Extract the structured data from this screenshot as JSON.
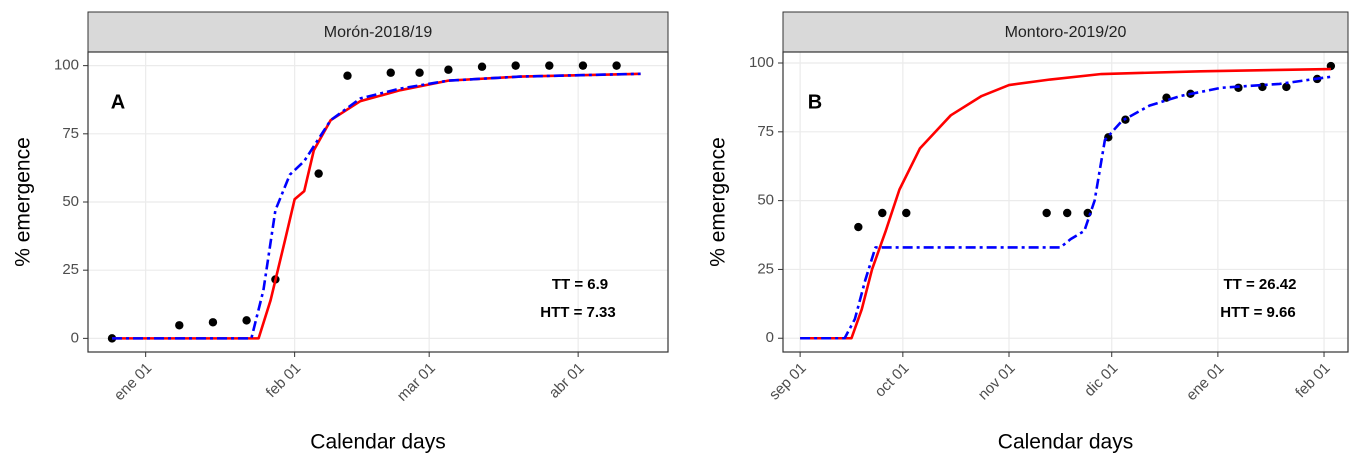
{
  "chart_data": [
    {
      "type": "line",
      "title": "Morón-2018/19",
      "xlabel": "Calendar days",
      "ylabel": "% emergence",
      "annotations": [
        "A",
        "TT = 6.9",
        "HTT = 7.33"
      ],
      "xlim": [
        -12,
        108.7
      ],
      "ylim": [
        -5,
        105
      ],
      "xticks": [
        {
          "value": 0,
          "label": "ene 01"
        },
        {
          "value": 31,
          "label": "feb 01"
        },
        {
          "value": 59,
          "label": "mar 01"
        },
        {
          "value": 90,
          "label": "abr 01"
        }
      ],
      "yticks": [
        0,
        25,
        50,
        75,
        100
      ],
      "grid": true,
      "series": [
        {
          "color": "#000000",
          "mark": "point",
          "x": [
            -7,
            7,
            14,
            21,
            27,
            36,
            42,
            51,
            57,
            63,
            70,
            77,
            84,
            91,
            98
          ],
          "values": [
            0,
            4.8,
            5.9,
            6.6,
            21.6,
            60.4,
            96.3,
            97.4,
            97.4,
            98.5,
            99.6,
            100,
            100,
            100,
            100
          ]
        },
        {
          "color": "#ff0000",
          "mark": "line",
          "dash": false,
          "x": [
            -7,
            23.5,
            26,
            29,
            31,
            33,
            35,
            38.5,
            44.7,
            53,
            63,
            78,
            103
          ],
          "values": [
            0,
            0,
            14,
            36,
            51,
            54,
            69,
            80,
            87,
            91,
            94.5,
            96,
            97
          ]
        },
        {
          "color": "#0000ff",
          "mark": "line",
          "dash": true,
          "x": [
            -7,
            22,
            24.5,
            27,
            30,
            33,
            38.5,
            44.7,
            53,
            63,
            78,
            103
          ],
          "values": [
            0,
            0,
            17.6,
            47,
            60,
            65,
            80,
            88,
            91.6,
            94.5,
            96,
            97
          ]
        }
      ]
    },
    {
      "type": "line",
      "title": "Montoro-2019/20",
      "xlabel": "Calendar days",
      "ylabel": "% emergence",
      "annotations": [
        "B",
        "TT = 26.42",
        "HTT = 9.66"
      ],
      "xlim": [
        -5,
        160
      ],
      "ylim": [
        -5,
        104
      ],
      "xticks": [
        {
          "value": 0,
          "label": "sep 01"
        },
        {
          "value": 30,
          "label": "oct 01"
        },
        {
          "value": 61,
          "label": "nov 01"
        },
        {
          "value": 91,
          "label": "dic 01"
        },
        {
          "value": 122,
          "label": "ene 01"
        },
        {
          "value": 153,
          "label": "feb 01"
        }
      ],
      "yticks": [
        0,
        25,
        50,
        75,
        100
      ],
      "grid": true,
      "series": [
        {
          "color": "#000000",
          "mark": "point",
          "x": [
            17,
            24,
            31,
            72,
            78,
            84,
            90,
            95,
            107,
            114,
            128,
            135,
            142,
            151,
            155
          ],
          "values": [
            40.4,
            45.5,
            45.5,
            45.5,
            45.5,
            45.5,
            73,
            79.4,
            87.4,
            88.8,
            91,
            91.3,
            91.3,
            94.2,
            98.9
          ]
        },
        {
          "color": "#ff0000",
          "mark": "line",
          "dash": false,
          "x": [
            0,
            15,
            18,
            21,
            25,
            29,
            35,
            44,
            53,
            61,
            73,
            88,
            117,
            155
          ],
          "values": [
            0,
            0,
            10.5,
            25,
            39,
            54,
            69,
            81,
            88,
            92,
            94,
            96,
            97,
            97.8
          ]
        },
        {
          "color": "#0000ff",
          "mark": "line",
          "dash": true,
          "x": [
            0,
            13,
            16,
            19,
            22,
            76,
            79,
            83,
            86,
            89,
            94,
            102,
            111,
            123,
            140,
            155
          ],
          "values": [
            0,
            0,
            7,
            21,
            33,
            33,
            36,
            39,
            50,
            72,
            79,
            84.5,
            88,
            91,
            92.4,
            95
          ]
        }
      ]
    }
  ]
}
